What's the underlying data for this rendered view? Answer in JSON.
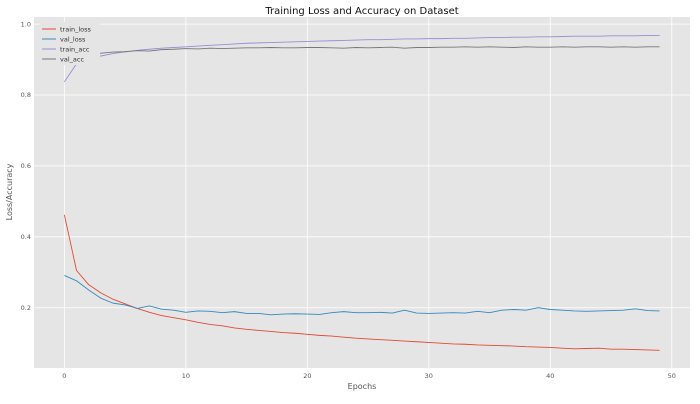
{
  "chart_data": {
    "type": "line",
    "title": "Training Loss and Accuracy on Dataset",
    "xlabel": "Epochs",
    "ylabel": "Loss/Accuracy",
    "xlim": [
      -2.5,
      51.5
    ],
    "ylim": [
      0.03,
      1.02
    ],
    "xticks": [
      0,
      10,
      20,
      30,
      40,
      50
    ],
    "yticks": [
      0.2,
      0.4,
      0.6,
      0.8,
      1.0
    ],
    "grid": true,
    "legend_position": "top-left",
    "x": [
      0,
      1,
      2,
      3,
      4,
      5,
      6,
      7,
      8,
      9,
      10,
      11,
      12,
      13,
      14,
      15,
      16,
      17,
      18,
      19,
      20,
      21,
      22,
      23,
      24,
      25,
      26,
      27,
      28,
      29,
      30,
      31,
      32,
      33,
      34,
      35,
      36,
      37,
      38,
      39,
      40,
      41,
      42,
      43,
      44,
      45,
      46,
      47,
      48,
      49
    ],
    "series": [
      {
        "name": "train_loss",
        "color": "#E24A33",
        "values": [
          0.462,
          0.305,
          0.265,
          0.242,
          0.224,
          0.211,
          0.198,
          0.187,
          0.178,
          0.172,
          0.166,
          0.159,
          0.153,
          0.149,
          0.143,
          0.139,
          0.136,
          0.133,
          0.13,
          0.128,
          0.125,
          0.122,
          0.12,
          0.117,
          0.114,
          0.112,
          0.11,
          0.108,
          0.106,
          0.104,
          0.102,
          0.1,
          0.098,
          0.097,
          0.095,
          0.094,
          0.093,
          0.092,
          0.09,
          0.089,
          0.088,
          0.086,
          0.084,
          0.085,
          0.086,
          0.083,
          0.083,
          0.082,
          0.081,
          0.08
        ]
      },
      {
        "name": "val_loss",
        "color": "#348ABD",
        "values": [
          0.291,
          0.276,
          0.25,
          0.227,
          0.213,
          0.208,
          0.198,
          0.205,
          0.196,
          0.193,
          0.187,
          0.191,
          0.19,
          0.186,
          0.189,
          0.184,
          0.184,
          0.18,
          0.182,
          0.183,
          0.182,
          0.181,
          0.186,
          0.189,
          0.186,
          0.186,
          0.187,
          0.185,
          0.193,
          0.185,
          0.184,
          0.185,
          0.186,
          0.185,
          0.19,
          0.186,
          0.193,
          0.195,
          0.193,
          0.2,
          0.195,
          0.193,
          0.191,
          0.19,
          0.191,
          0.192,
          0.193,
          0.197,
          0.192,
          0.191
        ]
      },
      {
        "name": "train_acc",
        "color": "#988ED5",
        "values": [
          0.837,
          0.888,
          0.902,
          0.91,
          0.917,
          0.922,
          0.926,
          0.929,
          0.932,
          0.934,
          0.936,
          0.938,
          0.94,
          0.942,
          0.944,
          0.946,
          0.947,
          0.948,
          0.949,
          0.95,
          0.951,
          0.952,
          0.953,
          0.954,
          0.955,
          0.956,
          0.956,
          0.957,
          0.958,
          0.958,
          0.959,
          0.959,
          0.96,
          0.96,
          0.961,
          0.962,
          0.962,
          0.963,
          0.963,
          0.964,
          0.964,
          0.965,
          0.966,
          0.966,
          0.966,
          0.967,
          0.967,
          0.967,
          0.968,
          0.968
        ]
      },
      {
        "name": "val_acc",
        "color": "#777777",
        "values": [
          0.9,
          0.906,
          0.913,
          0.918,
          0.921,
          0.922,
          0.925,
          0.924,
          0.928,
          0.929,
          0.931,
          0.93,
          0.932,
          0.931,
          0.932,
          0.933,
          0.933,
          0.934,
          0.933,
          0.933,
          0.934,
          0.934,
          0.933,
          0.932,
          0.934,
          0.933,
          0.934,
          0.935,
          0.932,
          0.934,
          0.934,
          0.935,
          0.935,
          0.936,
          0.935,
          0.936,
          0.935,
          0.934,
          0.936,
          0.935,
          0.935,
          0.936,
          0.935,
          0.936,
          0.936,
          0.935,
          0.936,
          0.935,
          0.936,
          0.936
        ]
      }
    ]
  }
}
